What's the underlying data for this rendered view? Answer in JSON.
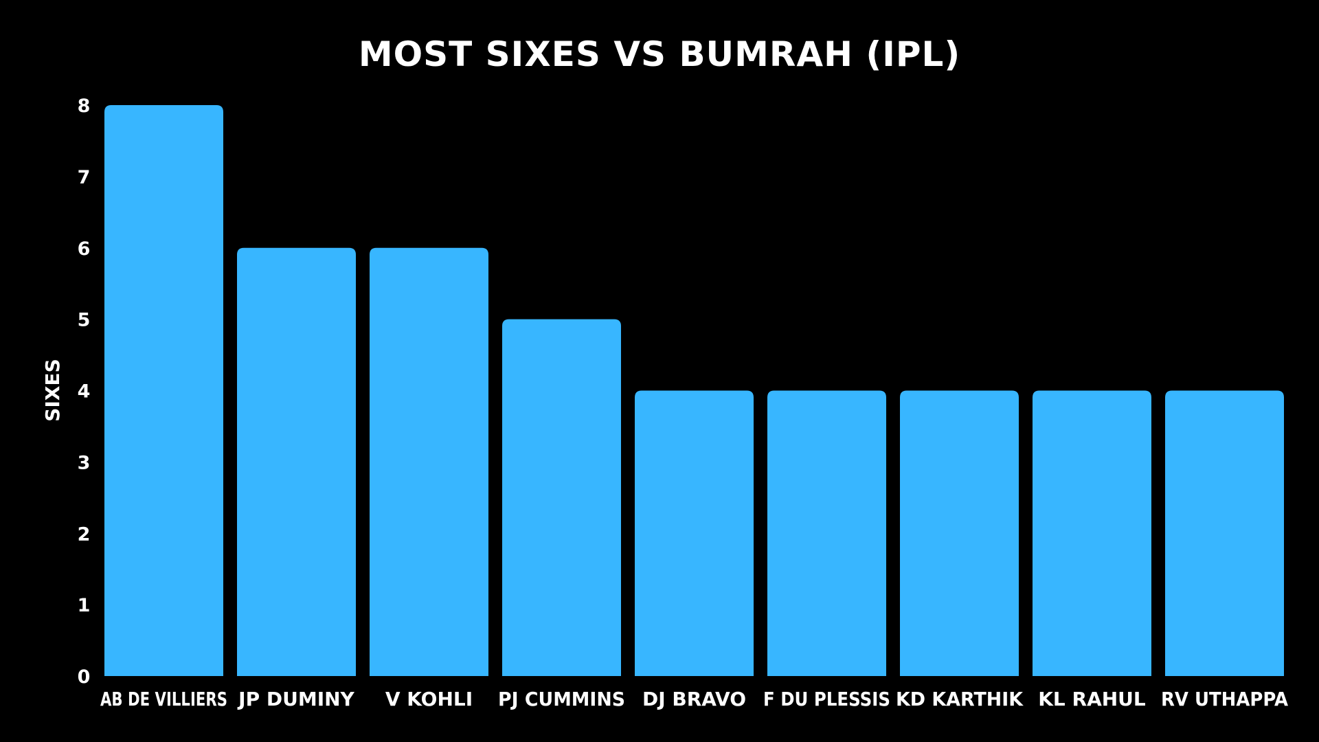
{
  "chart_data": {
    "type": "bar",
    "title": "MOST SIXES VS BUMRAH (IPL)",
    "xlabel": "",
    "ylabel": "SIXES",
    "ylim": [
      0,
      8
    ],
    "yticks": [
      0,
      1,
      2,
      3,
      4,
      5,
      6,
      7,
      8
    ],
    "grid": false,
    "bar_color": "#38b6ff",
    "background_color": "#000000",
    "text_color": "#ffffff",
    "categories": [
      "AB DE VILLIERS",
      "JP DUMINY",
      "V KOHLI",
      "PJ CUMMINS",
      "DJ BRAVO",
      "F DU PLESSIS",
      "KD KARTHIK",
      "KL RAHUL",
      "RV UTHAPPA"
    ],
    "values": [
      8,
      6,
      6,
      5,
      4,
      4,
      4,
      4,
      4
    ]
  }
}
